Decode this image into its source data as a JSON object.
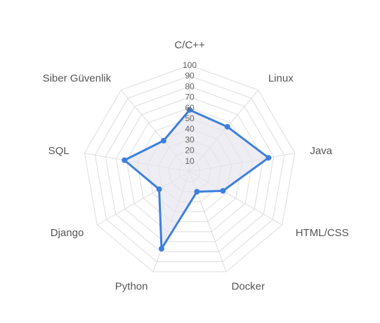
{
  "chart_data": {
    "type": "radar",
    "categories": [
      "C/C++",
      "Linux",
      "Java",
      "HTML/CSS",
      "Docker",
      "Python",
      "Django",
      "SQL",
      "Siber Güvenlik"
    ],
    "series": [
      {
        "values": [
          58,
          55,
          75,
          36,
          20,
          77,
          33,
          62,
          38
        ]
      }
    ],
    "r_ticks": [
      "10",
      "20",
      "30",
      "40",
      "50",
      "60",
      "70",
      "80",
      "90",
      "100"
    ],
    "rlim": [
      0,
      100
    ],
    "grid": true,
    "legend": false,
    "colors": {
      "line": "#3d7fe0",
      "fill": "#e6e6ee",
      "grid": "#dddddd",
      "label": "#555555"
    }
  }
}
